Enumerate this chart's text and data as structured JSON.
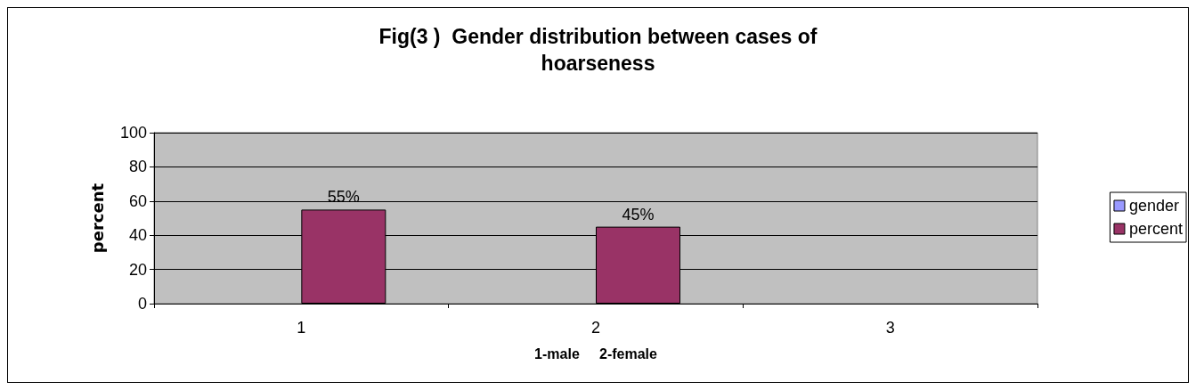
{
  "chart_data": {
    "type": "bar",
    "title": "Fig(3 )  Gender distribution between cases of\nhoarseness",
    "xlabel": "1-male     2-female",
    "ylabel": "percent",
    "categories": [
      "1",
      "2",
      "3"
    ],
    "series": [
      {
        "name": "gender",
        "color": "#9999ff",
        "values": [
          null,
          null,
          null
        ]
      },
      {
        "name": "percent",
        "color": "#993366",
        "values": [
          55,
          45,
          null
        ],
        "value_labels": [
          "55%",
          "45%",
          null
        ]
      }
    ],
    "ylim": [
      0,
      100
    ],
    "yticks": [
      0,
      20,
      40,
      60,
      80,
      100
    ],
    "grid": "y",
    "legend": "right"
  }
}
